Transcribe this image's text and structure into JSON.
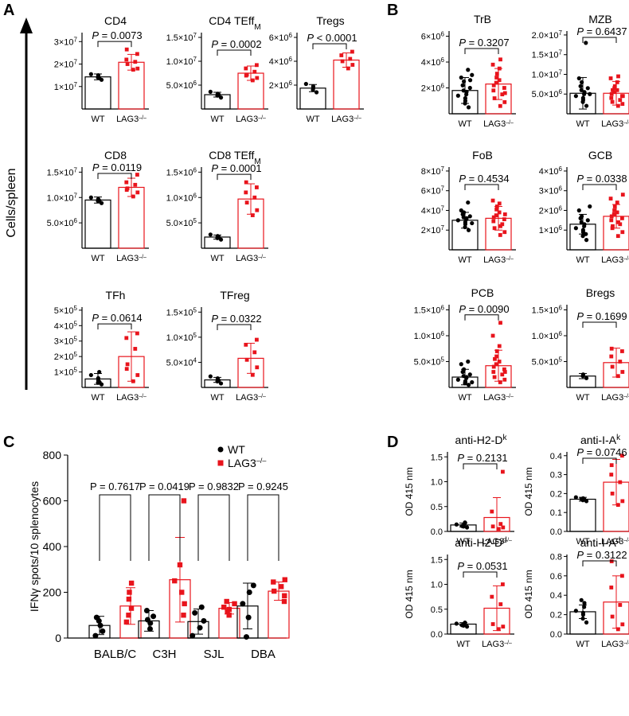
{
  "colors": {
    "wt": "#000000",
    "ko": "#e8141c"
  },
  "sup_minus": "–/–",
  "panels": {
    "A": {
      "label": "A",
      "ylabel": "Cells/spleen"
    },
    "B": {
      "label": "B"
    },
    "C": {
      "label": "C"
    },
    "D": {
      "label": "D"
    }
  },
  "chart_data": [
    {
      "id": "a1",
      "type": "bar",
      "title": "CD4",
      "categories": [
        "WT",
        "LAG3"
      ],
      "ticks": [
        "1×10^7",
        "2×10^7",
        "3×10^7"
      ],
      "tick_values": [
        1,
        2,
        3
      ],
      "ylim": [
        0,
        3.4
      ],
      "p": "P = 0.0073",
      "series": [
        {
          "name": "WT",
          "mean": 1.43,
          "sd": 0.13,
          "points": [
            1.3,
            1.4,
            1.45,
            1.5,
            1.55,
            1.38
          ]
        },
        {
          "name": "LAG3",
          "mean": 2.08,
          "sd": 0.35,
          "points": [
            1.75,
            1.8,
            2.0,
            2.1,
            2.2,
            2.45,
            2.65
          ]
        }
      ]
    },
    {
      "id": "a2",
      "type": "bar",
      "title": "CD4 TEff_M",
      "ticks": [
        "5.0×10^6",
        "1.0×10^7",
        "1.5×10^7"
      ],
      "tick_values": [
        0.5,
        1.0,
        1.5
      ],
      "ylim": [
        0,
        1.6
      ],
      "p": "P = 0.0002",
      "series": [
        {
          "name": "WT",
          "mean": 0.3,
          "sd": 0.05,
          "points": [
            0.24,
            0.28,
            0.3,
            0.32,
            0.36,
            0.3
          ]
        },
        {
          "name": "LAG3",
          "mean": 0.75,
          "sd": 0.15,
          "points": [
            0.6,
            0.65,
            0.72,
            0.78,
            0.85,
            0.92,
            0.7
          ]
        }
      ]
    },
    {
      "id": "a3",
      "type": "bar",
      "title": "Tregs",
      "ticks": [
        "2×10^6",
        "4×10^6",
        "6×10^6"
      ],
      "tick_values": [
        2,
        4,
        6
      ],
      "ylim": [
        0,
        6.4
      ],
      "p": "P < 0.0001",
      "series": [
        {
          "name": "WT",
          "mean": 1.75,
          "sd": 0.3,
          "points": [
            1.4,
            1.6,
            1.75,
            1.9,
            2.1
          ]
        },
        {
          "name": "LAG3",
          "mean": 4.1,
          "sd": 0.6,
          "points": [
            3.4,
            3.7,
            4.0,
            4.2,
            4.5,
            4.8
          ]
        }
      ]
    },
    {
      "id": "a4",
      "type": "bar",
      "title": "CD8",
      "ticks": [
        "5.0×10^6",
        "1.0×10^7",
        "1.5×10^7"
      ],
      "tick_values": [
        0.5,
        1.0,
        1.5
      ],
      "ylim": [
        0,
        1.6
      ],
      "p": "P = 0.0119",
      "series": [
        {
          "name": "WT",
          "mean": 0.95,
          "sd": 0.06,
          "points": [
            0.89,
            0.93,
            0.95,
            0.97,
            1.0,
            0.94
          ]
        },
        {
          "name": "LAG3",
          "mean": 1.2,
          "sd": 0.18,
          "points": [
            1.02,
            1.1,
            1.18,
            1.25,
            1.3,
            1.45,
            1.15
          ]
        }
      ]
    },
    {
      "id": "a5",
      "type": "bar",
      "title": "CD8 TEff_M",
      "ticks": [
        "5.0×10^5",
        "1.0×10^6",
        "1.5×10^6"
      ],
      "tick_values": [
        0.5,
        1.0,
        1.5
      ],
      "ylim": [
        0,
        1.6
      ],
      "p": "P = 0.0001",
      "series": [
        {
          "name": "WT",
          "mean": 0.22,
          "sd": 0.04,
          "points": [
            0.17,
            0.2,
            0.22,
            0.24,
            0.27,
            0.22
          ]
        },
        {
          "name": "LAG3",
          "mean": 0.97,
          "sd": 0.3,
          "points": [
            0.65,
            0.75,
            0.9,
            1.0,
            1.1,
            1.2,
            1.3
          ]
        }
      ]
    },
    {
      "id": "a6",
      "type": "bar",
      "title": "TFh",
      "ticks": [
        "1×10^5",
        "2×10^5",
        "3×10^5",
        "4×10^5",
        "5×10^5"
      ],
      "tick_values": [
        1,
        2,
        3,
        4,
        5
      ],
      "ylim": [
        0,
        5.2
      ],
      "p": "P = 0.0614",
      "series": [
        {
          "name": "WT",
          "mean": 0.55,
          "sd": 0.35,
          "points": [
            0.2,
            0.3,
            0.45,
            0.6,
            0.8,
            1.0,
            0.35
          ]
        },
        {
          "name": "LAG3",
          "mean": 2.0,
          "sd": 1.6,
          "points": [
            0.4,
            0.8,
            1.5,
            2.5,
            3.2,
            3.5,
            1.2
          ]
        }
      ]
    },
    {
      "id": "a7",
      "type": "bar",
      "title": "TFreg",
      "ticks": [
        "5.0×10^4",
        "1.0×10^5",
        "1.5×10^5"
      ],
      "tick_values": [
        0.5,
        1.0,
        1.5
      ],
      "ylim": [
        0,
        1.6
      ],
      "p": "P = 0.0322",
      "series": [
        {
          "name": "WT",
          "mean": 0.15,
          "sd": 0.05,
          "points": [
            0.08,
            0.12,
            0.15,
            0.18,
            0.22,
            0.14
          ]
        },
        {
          "name": "LAG3",
          "mean": 0.58,
          "sd": 0.3,
          "points": [
            0.25,
            0.4,
            0.55,
            0.7,
            0.85,
            0.95
          ]
        }
      ]
    },
    {
      "id": "b1",
      "type": "bar",
      "title": "TrB",
      "ticks": [
        "2×10^6",
        "4×10^6",
        "6×10^6"
      ],
      "tick_values": [
        2,
        4,
        6
      ],
      "ylim": [
        0,
        6.4
      ],
      "p": "P = 0.3207",
      "series": [
        {
          "name": "WT",
          "mean": 1.8,
          "sd": 1.0,
          "points": [
            0.5,
            0.8,
            1.0,
            1.2,
            1.4,
            1.5,
            1.7,
            1.8,
            2.0,
            2.2,
            2.5,
            2.8,
            3.0,
            3.4,
            2.6
          ]
        },
        {
          "name": "LAG3",
          "mean": 2.3,
          "sd": 1.2,
          "points": [
            0.6,
            0.9,
            1.2,
            1.5,
            1.8,
            2.0,
            2.2,
            2.4,
            2.6,
            2.8,
            3.1,
            3.5,
            3.8,
            4.2,
            1.6
          ]
        }
      ]
    },
    {
      "id": "b2",
      "type": "bar",
      "title": "MZB",
      "ticks": [
        "5.0×10^6",
        "1.0×10^7",
        "1.5×10^7",
        "2.0×10^7"
      ],
      "tick_values": [
        0.5,
        1.0,
        1.5,
        2.0
      ],
      "ylim": [
        0,
        2.1
      ],
      "p": "P = 0.6437",
      "series": [
        {
          "name": "WT",
          "mean": 0.52,
          "sd": 0.4,
          "points": [
            0.2,
            0.3,
            0.35,
            0.4,
            0.45,
            0.5,
            0.55,
            0.6,
            0.65,
            0.7,
            0.8,
            0.9,
            0.5,
            1.8
          ]
        },
        {
          "name": "LAG3",
          "mean": 0.52,
          "sd": 0.3,
          "points": [
            0.2,
            0.25,
            0.3,
            0.35,
            0.4,
            0.45,
            0.5,
            0.55,
            0.6,
            0.65,
            0.7,
            0.8,
            0.9,
            0.95,
            0.45,
            0.6
          ]
        }
      ]
    },
    {
      "id": "b3",
      "type": "bar",
      "title": "FoB",
      "ticks": [
        "2×10^7",
        "4×10^7",
        "6×10^7",
        "8×10^7"
      ],
      "tick_values": [
        2,
        4,
        6,
        8
      ],
      "ylim": [
        0,
        8.4
      ],
      "p": "P = 0.4534",
      "series": [
        {
          "name": "WT",
          "mean": 3.0,
          "sd": 0.8,
          "points": [
            2.0,
            2.3,
            2.6,
            2.8,
            3.0,
            3.1,
            3.2,
            3.3,
            3.4,
            3.6,
            3.8,
            4.0,
            2.7,
            4.8
          ]
        },
        {
          "name": "LAG3",
          "mean": 3.2,
          "sd": 1.2,
          "points": [
            1.5,
            1.8,
            2.2,
            2.6,
            2.9,
            3.1,
            3.3,
            3.5,
            3.8,
            4.1,
            4.4,
            4.7,
            5.0,
            2.4,
            3.6
          ]
        }
      ]
    },
    {
      "id": "b4",
      "type": "bar",
      "title": "GCB",
      "ticks": [
        "1×10^6",
        "2×10^6",
        "3×10^6",
        "4×10^6"
      ],
      "tick_values": [
        1,
        2,
        3,
        4
      ],
      "ylim": [
        0,
        4.2
      ],
      "p": "P = 0.0338",
      "series": [
        {
          "name": "WT",
          "mean": 1.3,
          "sd": 0.5,
          "points": [
            0.5,
            0.7,
            0.9,
            1.0,
            1.1,
            1.2,
            1.3,
            1.4,
            1.5,
            1.6,
            1.7,
            2.0,
            2.2,
            0.8
          ]
        },
        {
          "name": "LAG3",
          "mean": 1.7,
          "sd": 0.6,
          "points": [
            0.7,
            0.9,
            1.1,
            1.3,
            1.5,
            1.6,
            1.7,
            1.8,
            1.9,
            2.0,
            2.2,
            2.4,
            2.6,
            1.4,
            2.8,
            1.2
          ]
        }
      ]
    },
    {
      "id": "b5",
      "type": "bar",
      "title": "PCB",
      "ticks": [
        "5.0×10^5",
        "1.0×10^6",
        "1.5×10^6"
      ],
      "tick_values": [
        0.5,
        1.0,
        1.5
      ],
      "ylim": [
        0,
        1.6
      ],
      "p": "P = 0.0090",
      "series": [
        {
          "name": "WT",
          "mean": 0.2,
          "sd": 0.15,
          "points": [
            0.05,
            0.08,
            0.1,
            0.12,
            0.15,
            0.18,
            0.2,
            0.22,
            0.25,
            0.3,
            0.35,
            0.45,
            0.1,
            0.5
          ]
        },
        {
          "name": "LAG3",
          "mean": 0.42,
          "sd": 0.3,
          "points": [
            0.1,
            0.15,
            0.2,
            0.25,
            0.3,
            0.35,
            0.4,
            0.45,
            0.5,
            0.6,
            0.7,
            0.8,
            1.0,
            1.25,
            0.3,
            0.55
          ]
        }
      ]
    },
    {
      "id": "b6",
      "type": "bar",
      "title": "Bregs",
      "ticks": [
        "5.0×10^5",
        "1.0×10^6",
        "1.5×10^6"
      ],
      "tick_values": [
        0.5,
        1.0,
        1.5
      ],
      "ylim": [
        0,
        1.6
      ],
      "p": "P = 0.1699",
      "series": [
        {
          "name": "WT",
          "mean": 0.22,
          "sd": 0.05,
          "points": [
            0.18,
            0.22,
            0.25
          ]
        },
        {
          "name": "LAG3",
          "mean": 0.48,
          "sd": 0.28,
          "points": [
            0.22,
            0.3,
            0.4,
            0.5,
            0.6,
            0.7,
            0.75
          ]
        }
      ]
    },
    {
      "id": "d1",
      "type": "bar",
      "title": "anti-H2-D",
      "title_sup": "k",
      "ylabel": "OD 415 nm",
      "ticks": [
        "0.0",
        "0.5",
        "1.0",
        "1.5"
      ],
      "tick_values": [
        0,
        0.5,
        1.0,
        1.5
      ],
      "ylim": [
        0,
        1.6
      ],
      "p": "P = 0.2131",
      "series": [
        {
          "name": "WT",
          "mean": 0.13,
          "sd": 0.04,
          "points": [
            0.08,
            0.1,
            0.12,
            0.13,
            0.14,
            0.16,
            0.18,
            0.11
          ]
        },
        {
          "name": "LAG3",
          "mean": 0.28,
          "sd": 0.4,
          "points": [
            0.05,
            0.08,
            0.1,
            0.15,
            0.4,
            1.2
          ]
        }
      ]
    },
    {
      "id": "d2",
      "type": "bar",
      "title": "anti-I-A",
      "title_sup": "k",
      "ylabel": "OD 415 nm",
      "ticks": [
        "0.0",
        "0.1",
        "0.2",
        "0.3",
        "0.4"
      ],
      "tick_values": [
        0,
        0.1,
        0.2,
        0.3,
        0.4
      ],
      "ylim": [
        0,
        0.42
      ],
      "p": "P = 0.0746",
      "series": [
        {
          "name": "WT",
          "mean": 0.17,
          "sd": 0.01,
          "points": [
            0.16,
            0.165,
            0.17,
            0.175,
            0.18,
            0.17,
            0.168,
            0.172
          ]
        },
        {
          "name": "LAG3",
          "mean": 0.26,
          "sd": 0.12,
          "points": [
            0.14,
            0.16,
            0.2,
            0.26,
            0.3,
            0.4,
            0.35
          ]
        }
      ]
    },
    {
      "id": "d3",
      "type": "bar",
      "title": "anti-H2-D",
      "title_sup": "d",
      "ylabel": "OD 415 nm",
      "ticks": [
        "0.0",
        "0.5",
        "1.0",
        "1.5"
      ],
      "tick_values": [
        0,
        0.5,
        1.0,
        1.5
      ],
      "ylim": [
        0,
        1.6
      ],
      "p": "P = 0.0531",
      "series": [
        {
          "name": "WT",
          "mean": 0.2,
          "sd": 0.03,
          "points": [
            0.15,
            0.17,
            0.19,
            0.2,
            0.21,
            0.22,
            0.23,
            0.18
          ]
        },
        {
          "name": "LAG3",
          "mean": 0.52,
          "sd": 0.45,
          "points": [
            0.1,
            0.15,
            0.2,
            0.6,
            0.75,
            1.0
          ]
        }
      ]
    },
    {
      "id": "d4",
      "type": "bar",
      "title": "anti-I-A",
      "title_sup": "d",
      "ylabel": "OD 415 nm",
      "ticks": [
        "0.0",
        "0.2",
        "0.4",
        "0.6",
        "0.8"
      ],
      "tick_values": [
        0,
        0.2,
        0.4,
        0.6,
        0.8
      ],
      "ylim": [
        0,
        0.82
      ],
      "p": "P = 0.3122",
      "series": [
        {
          "name": "WT",
          "mean": 0.23,
          "sd": 0.07,
          "points": [
            0.12,
            0.16,
            0.2,
            0.22,
            0.24,
            0.28,
            0.32,
            0.35
          ]
        },
        {
          "name": "LAG3",
          "mean": 0.33,
          "sd": 0.27,
          "points": [
            0.05,
            0.1,
            0.18,
            0.3,
            0.48,
            0.6,
            0.75
          ]
        }
      ]
    },
    {
      "id": "c",
      "type": "bar",
      "title": "",
      "ylabel": "IFNγ spots/10^6 splenocytes",
      "ticks": [
        "0",
        "200",
        "400",
        "600",
        "800"
      ],
      "tick_values": [
        0,
        200,
        400,
        600,
        800
      ],
      "ylim": [
        0,
        800
      ],
      "legend": [
        "WT",
        "LAG3–/–"
      ],
      "categories": [
        "BALB/C",
        "C3H",
        "SJL",
        "DBA"
      ],
      "p_values": [
        "P = 0.7617",
        "P = 0.0419",
        "P = 0.9832",
        "P = 0.9245"
      ],
      "series": [
        {
          "name": "WT",
          "means": [
            55,
            75,
            72,
            140
          ],
          "sds": [
            40,
            45,
            55,
            100
          ],
          "points": [
            [
              10,
              30,
              55,
              75,
              90
            ],
            [
              40,
              65,
              80,
              95,
              120
            ],
            [
              10,
              45,
              75,
              110,
              135
            ],
            [
              5,
              90,
              150,
              200,
              230
            ]
          ]
        },
        {
          "name": "LAG3–/–",
          "means": [
            140,
            255,
            130,
            205
          ],
          "sds": [
            80,
            185,
            25,
            40
          ],
          "points": [
            [
              70,
              100,
              130,
              170,
              200,
              240
            ],
            [
              100,
              150,
              200,
              250,
              320,
              600
            ],
            [
              100,
              115,
              125,
              135,
              150,
              160
            ],
            [
              160,
              185,
              205,
              225,
              245,
              255
            ]
          ]
        }
      ]
    }
  ]
}
